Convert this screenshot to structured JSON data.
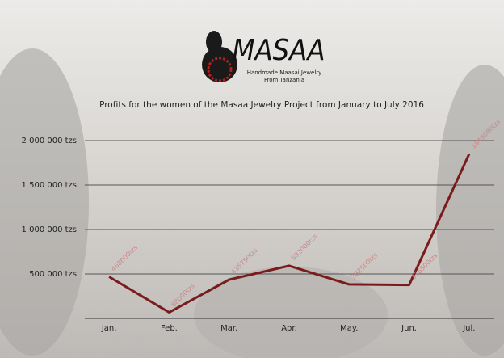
{
  "logo": {
    "name": "MASAA",
    "tagline_1": "Handmade Maasai Jewelry",
    "tagline_2": "From Tanzania"
  },
  "chart_data": {
    "type": "line",
    "title": "Profits for the women of the Masaa Jewelry Project from January to July 2016",
    "categories": [
      "Jan.",
      "Feb.",
      "Mar.",
      "Apr.",
      "May.",
      "Jun.",
      "Jul."
    ],
    "values": [
      468000,
      68000,
      435750,
      592000,
      382500,
      376500,
      1849080
    ],
    "value_labels": [
      "468000tzs",
      "68000tzs",
      "435750tzs",
      "592000tzs",
      "382500tzs",
      "376500tzs",
      "1849080tzs"
    ],
    "color": "#7a1c1c",
    "ylim": [
      0,
      2100000
    ],
    "yticks": [
      {
        "value": 500000,
        "label": "500 000 tzs"
      },
      {
        "value": 1000000,
        "label": "1 000 000 tzs"
      },
      {
        "value": 1500000,
        "label": "1 500 000 tzs"
      },
      {
        "value": 2000000,
        "label": "2 000 000 tzs"
      }
    ],
    "grid": true
  }
}
